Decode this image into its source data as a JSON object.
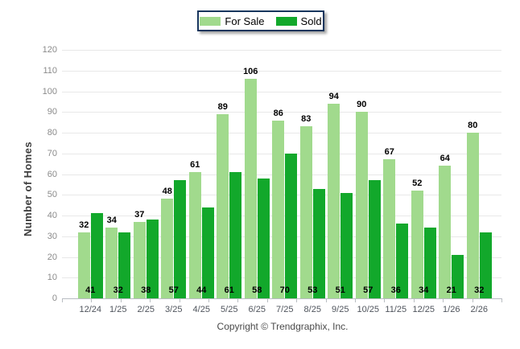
{
  "chart_data": {
    "type": "bar",
    "title": "",
    "categories": [
      "12/24",
      "1/25",
      "2/25",
      "3/25",
      "4/25",
      "5/25",
      "6/25",
      "7/25",
      "8/25",
      "9/25",
      "10/25",
      "11/25",
      "12/25",
      "1/26",
      "2/26"
    ],
    "series": [
      {
        "name": "For Sale",
        "color": "#a1da8d",
        "values": [
          32,
          34,
          37,
          48,
          61,
          89,
          106,
          86,
          83,
          94,
          90,
          67,
          52,
          64,
          80
        ],
        "value_label_position": "above-bar"
      },
      {
        "name": "Sold",
        "color": "#12a82b",
        "values": [
          41,
          32,
          38,
          57,
          44,
          61,
          58,
          70,
          53,
          51,
          57,
          36,
          34,
          21,
          32
        ],
        "value_label_position": "bottom-of-plot"
      }
    ],
    "xlabel": "",
    "ylabel": "Number of Homes",
    "ylim": [
      0,
      120
    ],
    "yticks": [
      0,
      10,
      20,
      30,
      40,
      50,
      60,
      70,
      80,
      90,
      100,
      110,
      120
    ],
    "grid": true,
    "legend_position": "top-center",
    "legend_border_color": "#17365d"
  },
  "footer": {
    "copyright": "Copyright © Trendgraphix, Inc."
  }
}
